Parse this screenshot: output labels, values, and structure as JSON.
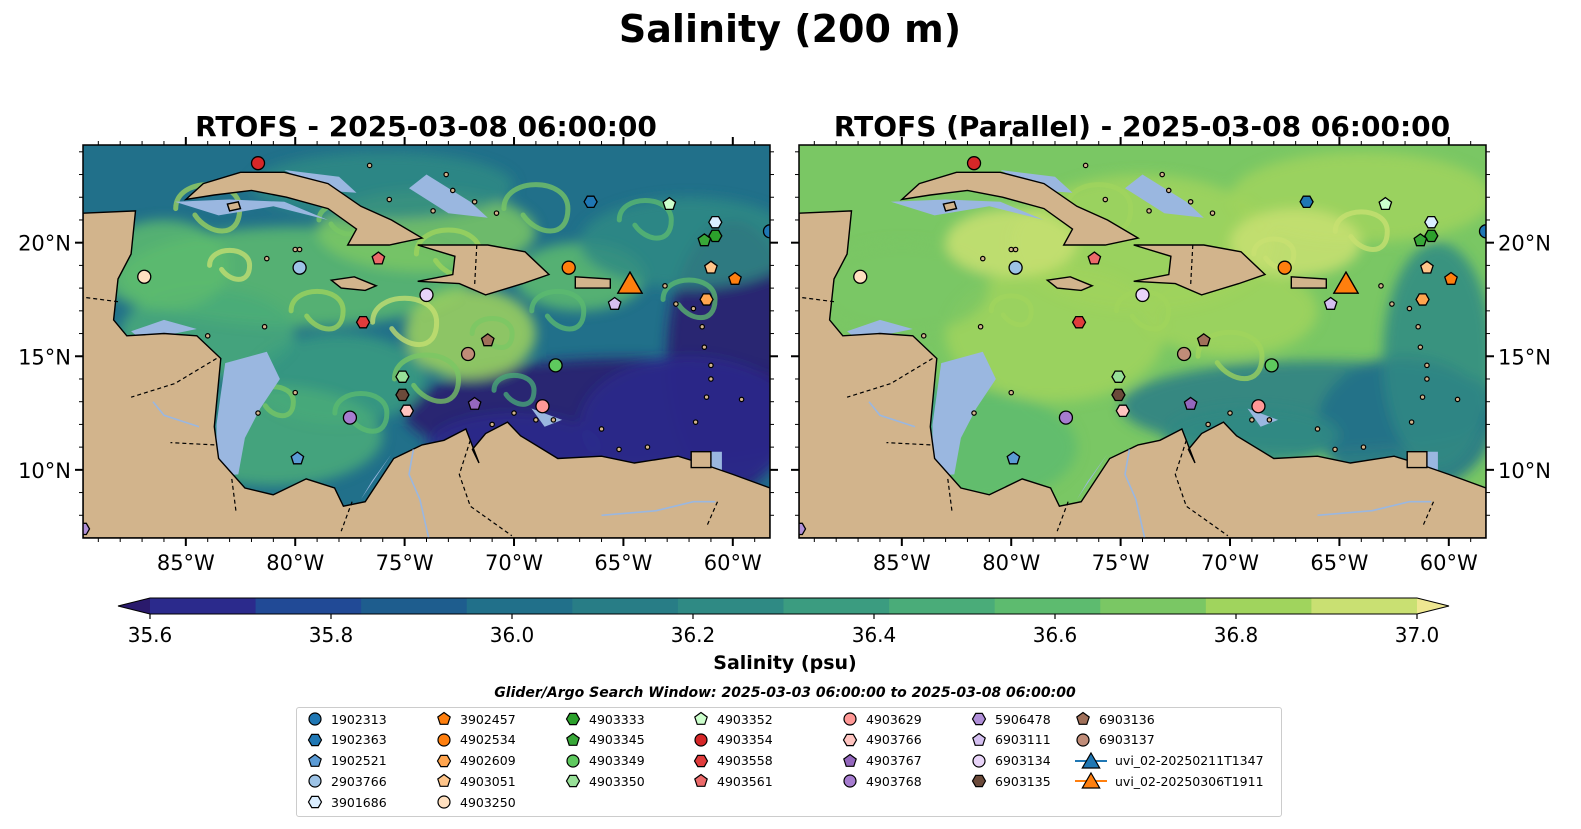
{
  "chart_data": {
    "type": "heatmap",
    "title": "Salinity (200 m)",
    "panels": [
      {
        "title": "RTOFS - 2025-03-08 06:00:00",
        "variant": "rtofs"
      },
      {
        "title": "RTOFS (Parallel) - 2025-03-08 06:00:00",
        "variant": "parallel"
      }
    ],
    "x_ticks": [
      "85°W",
      "80°W",
      "75°W",
      "70°W",
      "65°W",
      "60°W"
    ],
    "x_tick_values": [
      -85,
      -80,
      -75,
      -70,
      -65,
      -60
    ],
    "y_ticks": [
      "10°N",
      "15°N",
      "20°N"
    ],
    "y_tick_values": [
      10,
      15,
      20
    ],
    "xlim": [
      -89.7,
      -58.3
    ],
    "ylim": [
      7.0,
      24.3
    ],
    "colorbar": {
      "label": "Salinity (psu)",
      "ticks": [
        "35.6",
        "35.8",
        "36.0",
        "36.2",
        "36.4",
        "36.6",
        "36.8",
        "37.0"
      ],
      "tick_values": [
        35.6,
        35.8,
        36.0,
        36.2,
        36.4,
        36.6,
        36.8,
        37.0
      ],
      "range": [
        35.6,
        37.0
      ],
      "extend": "both",
      "colors": [
        "#2a1a6c",
        "#2b2a8c",
        "#214a96",
        "#1e5d8e",
        "#21708a",
        "#287d86",
        "#2f8a84",
        "#3b9c80",
        "#4aac79",
        "#5dbb6f",
        "#7ac764",
        "#a0d45d",
        "#c9e072",
        "#eee791"
      ]
    },
    "land_color": "#d2b48c",
    "shelf_color": "#9ab7e0",
    "search_window": "Glider/Argo Search Window: 2025-03-03 06:00:00 to 2025-03-08 06:00:00",
    "floats": [
      {
        "id": "1902313",
        "marker": "circle",
        "color": "#1f77b4",
        "lon": -58.3,
        "lat": 20.5
      },
      {
        "id": "1902363",
        "marker": "hexagon",
        "color": "#1f77b4",
        "lon": -66.5,
        "lat": 21.8
      },
      {
        "id": "1902521",
        "marker": "pentagon",
        "color": "#5b9bd5",
        "lon": -79.9,
        "lat": 10.5
      },
      {
        "id": "2903766",
        "marker": "circle",
        "color": "#9dc3e6",
        "lon": -79.8,
        "lat": 18.9
      },
      {
        "id": "3901686",
        "marker": "hexagon",
        "color": "#dbeeff",
        "lon": -60.8,
        "lat": 20.9
      },
      {
        "id": "3902457",
        "marker": "pentagon",
        "color": "#ff7f0e",
        "lon": -59.9,
        "lat": 18.4
      },
      {
        "id": "4902534",
        "marker": "circle",
        "color": "#ff7f0e",
        "lon": -67.5,
        "lat": 18.9
      },
      {
        "id": "4902609",
        "marker": "hexagon",
        "color": "#ffa54f",
        "lon": -61.2,
        "lat": 17.5
      },
      {
        "id": "4903051",
        "marker": "pentagon",
        "color": "#ffc58a",
        "lon": -61.0,
        "lat": 18.9
      },
      {
        "id": "4903250",
        "marker": "circle",
        "color": "#ffe0c0",
        "lon": -86.9,
        "lat": 18.5
      },
      {
        "id": "4903333",
        "marker": "hexagon",
        "color": "#2ca02c",
        "lon": -60.8,
        "lat": 20.3
      },
      {
        "id": "4903345",
        "marker": "pentagon",
        "color": "#38a838",
        "lon": -61.3,
        "lat": 20.1
      },
      {
        "id": "4903349",
        "marker": "circle",
        "color": "#5ec95e",
        "lon": -68.1,
        "lat": 14.6
      },
      {
        "id": "4903350",
        "marker": "hexagon",
        "color": "#98e098",
        "lon": -75.1,
        "lat": 14.1
      },
      {
        "id": "4903352",
        "marker": "pentagon",
        "color": "#ccffcc",
        "lon": -62.9,
        "lat": 21.7
      },
      {
        "id": "4903354",
        "marker": "circle",
        "color": "#d62728",
        "lon": -81.7,
        "lat": 23.5
      },
      {
        "id": "4903558",
        "marker": "hexagon",
        "color": "#e03c3c",
        "lon": -76.9,
        "lat": 16.5
      },
      {
        "id": "4903561",
        "marker": "pentagon",
        "color": "#ec6a6a",
        "lon": -76.2,
        "lat": 19.3
      },
      {
        "id": "4903629",
        "marker": "circle",
        "color": "#ff9896",
        "lon": -68.7,
        "lat": 12.8
      },
      {
        "id": "4903766",
        "marker": "hexagon",
        "color": "#ffc4c0",
        "lon": -74.9,
        "lat": 12.6
      },
      {
        "id": "4903767",
        "marker": "pentagon",
        "color": "#9467bd",
        "lon": -71.8,
        "lat": 12.9
      },
      {
        "id": "4903768",
        "marker": "circle",
        "color": "#a67ccf",
        "lon": -77.5,
        "lat": 12.3
      },
      {
        "id": "5906478",
        "marker": "hexagon",
        "color": "#b08fd8",
        "lon": -89.7,
        "lat": 7.4
      },
      {
        "id": "6903111",
        "marker": "pentagon",
        "color": "#d4bff0",
        "lon": -65.4,
        "lat": 17.3
      },
      {
        "id": "6903134",
        "marker": "circle",
        "color": "#e8d4f8",
        "lon": -74.0,
        "lat": 17.7
      },
      {
        "id": "6903135",
        "marker": "hexagon",
        "color": "#6b4a3a",
        "lon": -75.1,
        "lat": 13.3
      },
      {
        "id": "6903136",
        "marker": "pentagon",
        "color": "#a0705a",
        "lon": -71.2,
        "lat": 15.7
      },
      {
        "id": "6903137",
        "marker": "circle",
        "color": "#c08c78",
        "lon": -72.1,
        "lat": 15.1
      }
    ],
    "gliders": [
      {
        "id": "uvi_02-20250211T1347",
        "marker": "triangle",
        "color": "#1f77b4",
        "lon": -64.7,
        "lat": 18.0
      },
      {
        "id": "uvi_02-20250306T1911",
        "marker": "triangle",
        "color": "#ff7f0e",
        "lon": -64.7,
        "lat": 18.0
      }
    ]
  }
}
